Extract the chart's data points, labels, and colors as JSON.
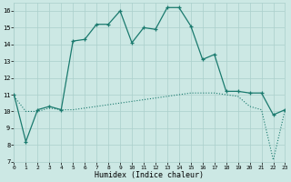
{
  "xlabel": "Humidex (Indice chaleur)",
  "x": [
    0,
    1,
    2,
    3,
    4,
    5,
    6,
    7,
    8,
    9,
    10,
    11,
    12,
    13,
    14,
    15,
    16,
    17,
    18,
    19,
    20,
    21,
    22,
    23
  ],
  "line1_y": [
    11.0,
    8.2,
    10.1,
    10.3,
    10.1,
    14.2,
    14.3,
    15.2,
    15.2,
    16.0,
    14.1,
    15.0,
    14.9,
    16.2,
    16.2,
    15.1,
    13.1,
    13.4,
    11.2,
    11.2,
    11.1,
    11.1,
    9.8,
    10.1
  ],
  "line2_y": [
    10.9,
    10.0,
    10.0,
    10.2,
    10.1,
    10.1,
    10.2,
    10.3,
    10.4,
    10.5,
    10.6,
    10.7,
    10.8,
    10.9,
    11.0,
    11.1,
    11.1,
    11.1,
    11.0,
    10.9,
    10.3,
    10.1,
    7.1,
    10.1
  ],
  "line_color": "#1a7a6e",
  "bg_color": "#cce8e4",
  "grid_color": "#aacfcb",
  "ylim": [
    7,
    16.5
  ],
  "xlim": [
    0,
    23
  ],
  "yticks": [
    7,
    8,
    9,
    10,
    11,
    12,
    13,
    14,
    15,
    16
  ],
  "xticks": [
    0,
    1,
    2,
    3,
    4,
    5,
    6,
    7,
    8,
    9,
    10,
    11,
    12,
    13,
    14,
    15,
    16,
    17,
    18,
    19,
    20,
    21,
    22,
    23
  ]
}
